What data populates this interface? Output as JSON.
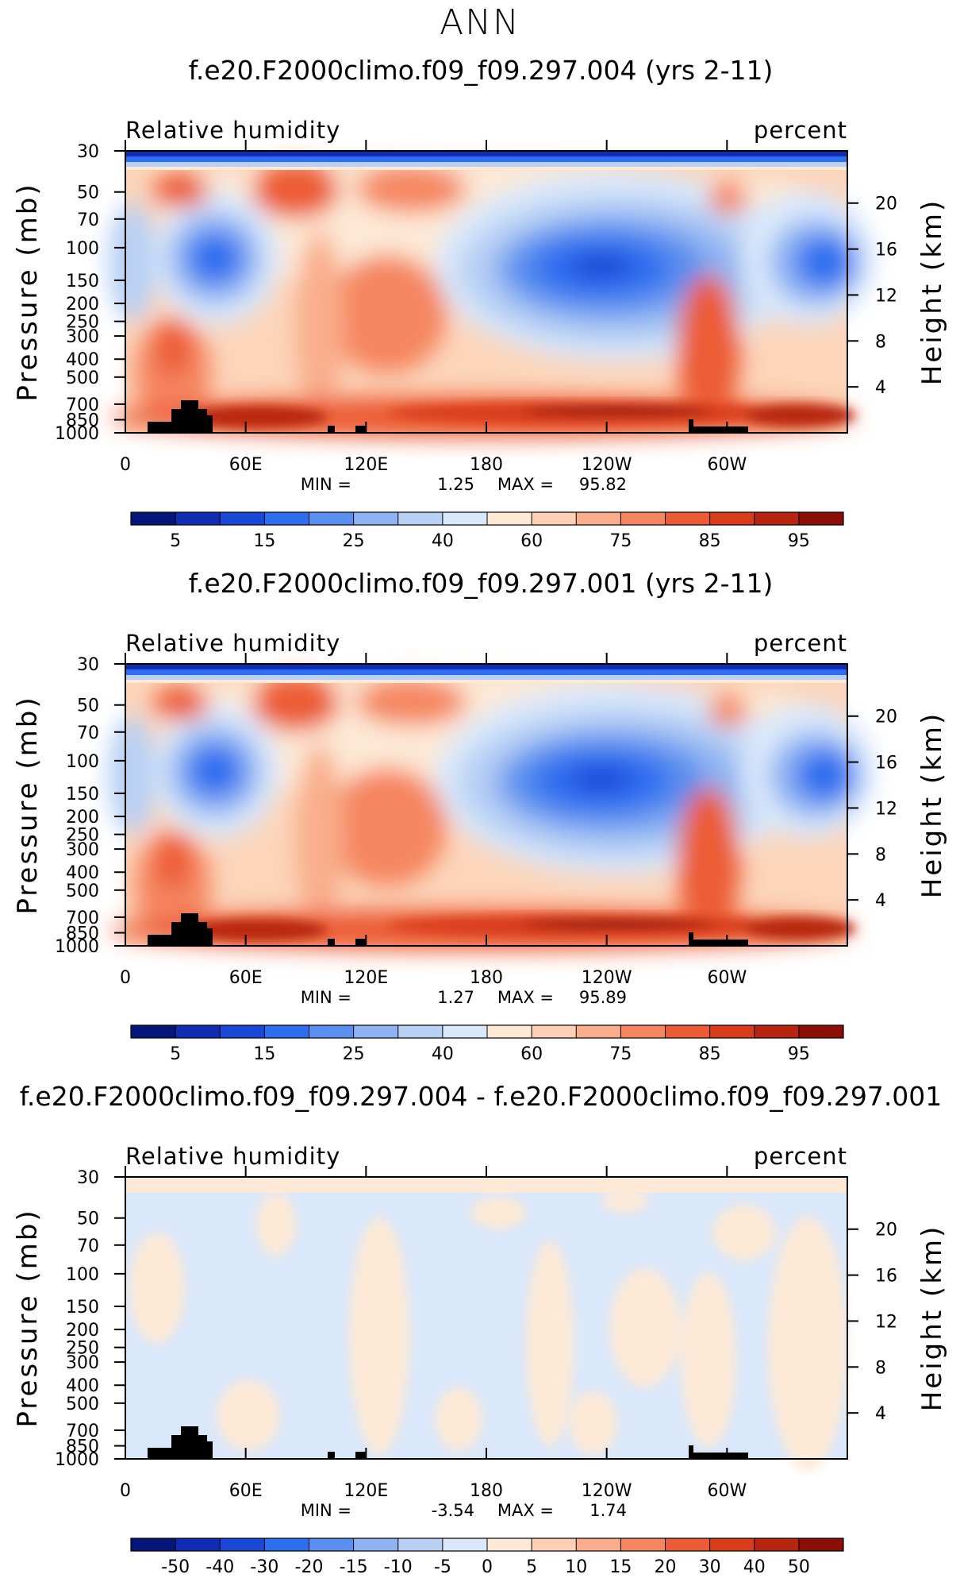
{
  "page": {
    "title": "ANN"
  },
  "colorbars": {
    "absolute": {
      "labels": [
        "5",
        "15",
        "25",
        "40",
        "60",
        "75",
        "85",
        "95"
      ],
      "colors": [
        "#05167a",
        "#0f2cb2",
        "#1a48d6",
        "#2e6ef0",
        "#5a8eef",
        "#8eb2f2",
        "#b8d0f4",
        "#d9e8fb",
        "#fde9d6",
        "#fcd0b4",
        "#f9ad8b",
        "#f58660",
        "#ec5b35",
        "#d83c1b",
        "#b72510",
        "#8a1007"
      ]
    },
    "difference": {
      "labels": [
        "-50",
        "-40",
        "-30",
        "-20",
        "-15",
        "-10",
        "-5",
        "0",
        "5",
        "10",
        "15",
        "20",
        "30",
        "40",
        "50"
      ],
      "colors": [
        "#05167a",
        "#0f2cb2",
        "#1a48d6",
        "#2e6ef0",
        "#5a8eef",
        "#8eb2f2",
        "#b8d0f4",
        "#d9e8fb",
        "#fde9d6",
        "#fcd0b4",
        "#f9ad8b",
        "#f58660",
        "#ec5b35",
        "#d83c1b",
        "#b72510",
        "#8a1007"
      ]
    }
  },
  "chart_data": [
    {
      "type": "heatmap",
      "title": "f.e20.F2000climo.f09_f09.297.004 (yrs 2-11)",
      "variable": "Relative humidity",
      "units": "percent",
      "xlabel": "",
      "ylabel": "Pressure (mb)",
      "ylabel_right": "Height (km)",
      "x_ticks": [
        "0",
        "60E",
        "120E",
        "180",
        "120W",
        "60W"
      ],
      "x_tick_lon": [
        0,
        60,
        120,
        180,
        240,
        300
      ],
      "xlim": [
        0,
        360
      ],
      "y_ticks": [
        "30",
        "50",
        "70",
        "100",
        "150",
        "200",
        "250",
        "300",
        "400",
        "500",
        "700",
        "850",
        "1000"
      ],
      "y_tick_p": [
        30,
        50,
        70,
        100,
        150,
        200,
        250,
        300,
        400,
        500,
        700,
        850,
        1000
      ],
      "ylim": [
        1000,
        30
      ],
      "height_ticks": [
        "20",
        "16",
        "12",
        "8",
        "4"
      ],
      "height_tick_km": [
        20,
        16,
        12,
        8,
        4
      ],
      "min": "1.25",
      "max": "95.82",
      "colorbar": "absolute"
    },
    {
      "type": "heatmap",
      "title": "f.e20.F2000climo.f09_f09.297.001 (yrs 2-11)",
      "variable": "Relative humidity",
      "units": "percent",
      "xlabel": "",
      "ylabel": "Pressure (mb)",
      "ylabel_right": "Height (km)",
      "x_ticks": [
        "0",
        "60E",
        "120E",
        "180",
        "120W",
        "60W"
      ],
      "x_tick_lon": [
        0,
        60,
        120,
        180,
        240,
        300
      ],
      "xlim": [
        0,
        360
      ],
      "y_ticks": [
        "30",
        "50",
        "70",
        "100",
        "150",
        "200",
        "250",
        "300",
        "400",
        "500",
        "700",
        "850",
        "1000"
      ],
      "y_tick_p": [
        30,
        50,
        70,
        100,
        150,
        200,
        250,
        300,
        400,
        500,
        700,
        850,
        1000
      ],
      "ylim": [
        1000,
        30
      ],
      "height_ticks": [
        "20",
        "16",
        "12",
        "8",
        "4"
      ],
      "height_tick_km": [
        20,
        16,
        12,
        8,
        4
      ],
      "min": "1.27",
      "max": "95.89",
      "colorbar": "absolute"
    },
    {
      "type": "heatmap",
      "title": "f.e20.F2000climo.f09_f09.297.004 - f.e20.F2000climo.f09_f09.297.001",
      "variable": "Relative humidity",
      "units": "percent",
      "xlabel": "",
      "ylabel": "Pressure (mb)",
      "ylabel_right": "Height (km)",
      "x_ticks": [
        "0",
        "60E",
        "120E",
        "180",
        "120W",
        "60W"
      ],
      "x_tick_lon": [
        0,
        60,
        120,
        180,
        240,
        300
      ],
      "xlim": [
        0,
        360
      ],
      "y_ticks": [
        "30",
        "50",
        "70",
        "100",
        "150",
        "200",
        "250",
        "300",
        "400",
        "500",
        "700",
        "850",
        "1000"
      ],
      "y_tick_p": [
        30,
        50,
        70,
        100,
        150,
        200,
        250,
        300,
        400,
        500,
        700,
        850,
        1000
      ],
      "ylim": [
        1000,
        30
      ],
      "height_ticks": [
        "20",
        "16",
        "12",
        "8",
        "4"
      ],
      "height_tick_km": [
        20,
        16,
        12,
        8,
        4
      ],
      "min": "-3.54",
      "max": "1.74",
      "colorbar": "difference"
    }
  ]
}
